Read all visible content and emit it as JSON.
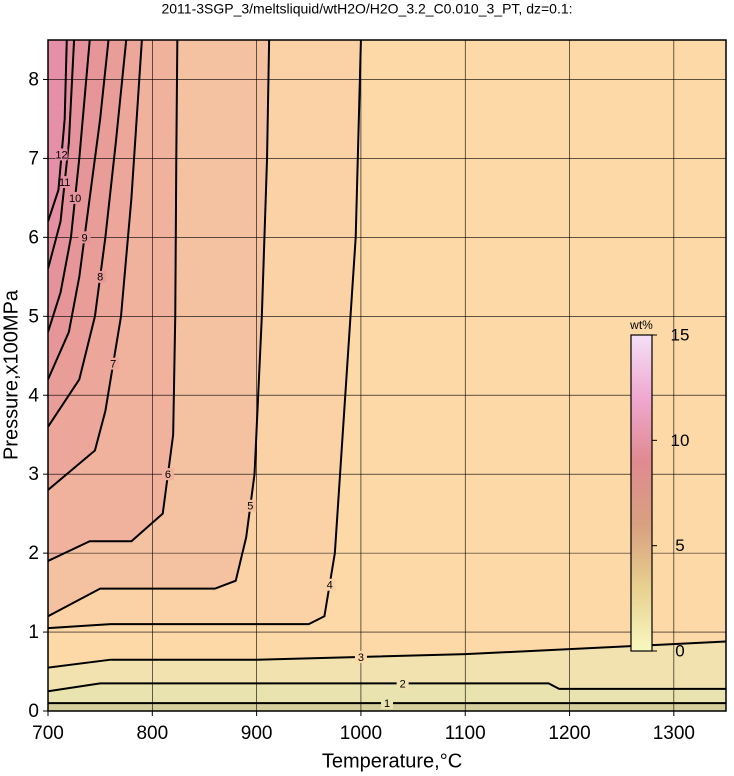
{
  "chart_data": {
    "type": "contour",
    "title": "2011-3SGP_3/meltsliquid/wtH2O/H2O_3.2_C0.010_3_PT, dz=0.1:",
    "x_label": "Temperature,°C",
    "y_label": "Pressure,x100MPa",
    "xlim": [
      700,
      1350
    ],
    "xticks": [
      700,
      800,
      900,
      1000,
      1100,
      1200,
      1300
    ],
    "ylim": [
      0,
      8.5
    ],
    "yticks": [
      0,
      1,
      2,
      3,
      4,
      5,
      6,
      7,
      8
    ],
    "grid": true,
    "background": "#d4cf9c",
    "contours": [
      {
        "level": 1,
        "color": "#e9e3b0",
        "x": [
          700,
          1350
        ],
        "y": [
          0.1,
          0.1
        ]
      },
      {
        "level": 2,
        "color": "#f1e2b0",
        "x": [
          700,
          750,
          900,
          1180,
          1190,
          1350
        ],
        "y": [
          0.25,
          0.35,
          0.35,
          0.35,
          0.28,
          0.28
        ]
      },
      {
        "level": 3,
        "color": "#fdd9a8",
        "x": [
          700,
          760,
          900,
          1100,
          1350
        ],
        "y": [
          0.55,
          0.65,
          0.65,
          0.72,
          0.88
        ]
      },
      {
        "level": 4,
        "color": "#fad2a6",
        "x": [
          700,
          760,
          850,
          950,
          965,
          975,
          985,
          995,
          1000
        ],
        "y": [
          1.05,
          1.1,
          1.1,
          1.1,
          1.2,
          2,
          4,
          6,
          8.5
        ]
      },
      {
        "level": 5,
        "color": "#f5c2a1",
        "x": [
          700,
          750,
          860,
          880,
          890,
          898,
          905,
          910,
          912
        ],
        "y": [
          1.2,
          1.55,
          1.55,
          1.65,
          2.2,
          3,
          5,
          7,
          8.5
        ]
      },
      {
        "level": 6,
        "color": "#f0b19d",
        "x": [
          700,
          740,
          780,
          810,
          820,
          822,
          823,
          824
        ],
        "y": [
          1.9,
          2.15,
          2.15,
          2.5,
          3.5,
          5,
          7,
          8.5
        ]
      },
      {
        "level": 7,
        "color": "#eca69a",
        "x": [
          700,
          745,
          755,
          770,
          780,
          790
        ],
        "y": [
          2.8,
          3.3,
          3.8,
          5,
          6.5,
          8.5
        ]
      },
      {
        "level": 8,
        "color": "#e89d98",
        "x": [
          700,
          730,
          745,
          755,
          765,
          775
        ],
        "y": [
          3.6,
          4.2,
          5,
          6,
          7.2,
          8.5
        ]
      },
      {
        "level": 9,
        "color": "#e69699",
        "x": [
          700,
          720,
          730,
          740,
          750,
          758
        ],
        "y": [
          4.2,
          4.8,
          5.5,
          6.5,
          7.5,
          8.5
        ]
      },
      {
        "level": 10,
        "color": "#e4929c",
        "x": [
          700,
          712,
          722,
          730,
          740
        ],
        "y": [
          4.8,
          5.3,
          6,
          7,
          8.5
        ]
      },
      {
        "level": 11,
        "color": "#e490a2",
        "x": [
          700,
          712,
          720,
          725
        ],
        "y": [
          5.6,
          6.2,
          7.2,
          8.5
        ]
      },
      {
        "level": 12,
        "color": "#e68fa9",
        "x": [
          700,
          710,
          716,
          718
        ],
        "y": [
          6.2,
          6.6,
          7.5,
          8.5
        ]
      }
    ],
    "colorbar": {
      "label": "wt%",
      "lim": [
        0,
        15
      ],
      "ticks": [
        0,
        5,
        10,
        15
      ],
      "colors": [
        "#f8f8c0",
        "#e8d090",
        "#d8a080",
        "#e08a90",
        "#f0a8d0",
        "#f4e0f8"
      ]
    }
  }
}
